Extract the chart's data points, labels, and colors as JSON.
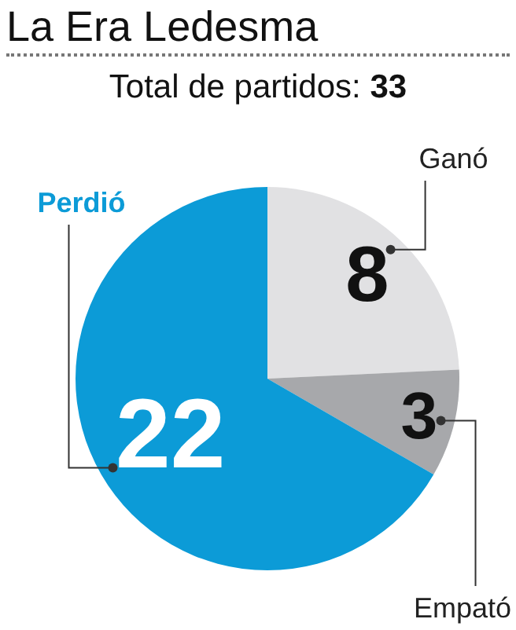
{
  "chart_data": {
    "type": "pie",
    "title": "La Era Ledesma",
    "subtitle": "Total de partidos: 33",
    "categories": [
      "Ganó",
      "Empató",
      "Perdió"
    ],
    "values": [
      8,
      3,
      22
    ],
    "colors": [
      "#e1e1e3",
      "#a7a8ab",
      "#0c9bd7"
    ],
    "data_labels": true,
    "legend": false
  }
}
